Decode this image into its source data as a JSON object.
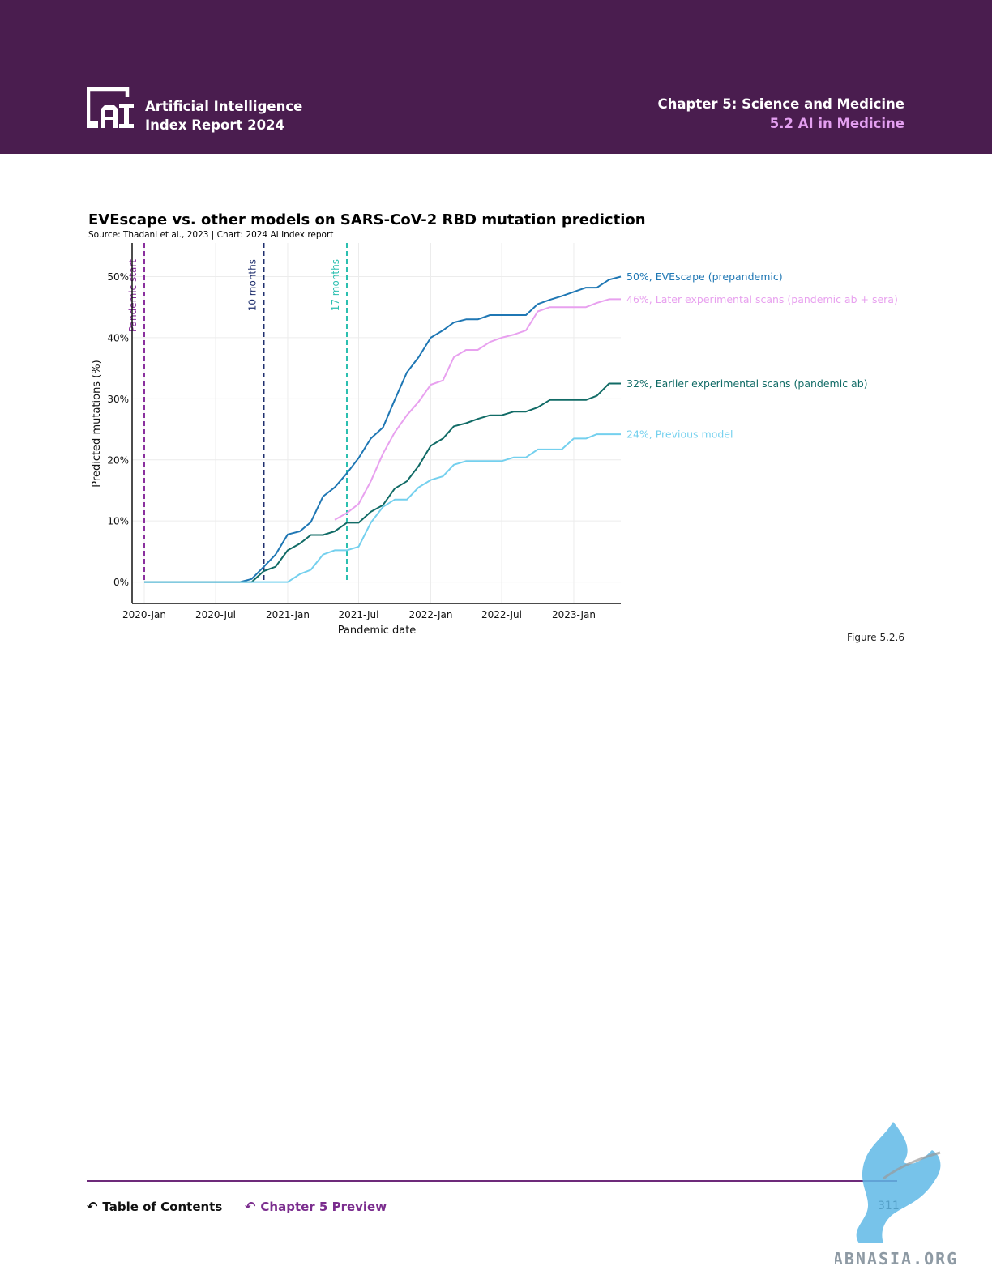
{
  "header": {
    "brand_line1": "Artificial Intelligence",
    "brand_line2": "Index Report 2024",
    "chapter": "Chapter 5: Science and Medicine",
    "section": "5.2 AI in Medicine",
    "colors": {
      "background": "#4a1d4f",
      "section": "#e39ff0"
    }
  },
  "figure": {
    "label": "Figure 5.2.6"
  },
  "footer": {
    "toc_label": "Table of Contents",
    "preview_label": "Chapter 5 Preview",
    "page_number": "311",
    "watermark": "ABNASIA.ORG"
  },
  "chart_data": {
    "type": "line",
    "title": "EVEscape vs. other models on SARS-CoV-2 RBD mutation prediction",
    "subtitle": "Source: Thadani et al., 2023 | Chart: 2024 AI Index report",
    "xlabel": "Pandemic date",
    "ylabel": "Predicted mutations (%)",
    "x_ticks": [
      "2020-Jan",
      "2020-Jul",
      "2021-Jan",
      "2021-Jul",
      "2022-Jan",
      "2022-Jul",
      "2023-Jan"
    ],
    "x_range": [
      "2019-12-01",
      "2023-05-01"
    ],
    "y_ticks": [
      "0%",
      "10%",
      "20%",
      "30%",
      "40%",
      "50%"
    ],
    "ylim": [
      -3.5,
      55.5
    ],
    "grid": true,
    "vlines": [
      {
        "label": "Pandemic start",
        "x": "2020-01-01",
        "color": "#8a2f9e"
      },
      {
        "label": "10 months",
        "x": "2020-11-01",
        "color": "#1f2f6e"
      },
      {
        "label": "17 months",
        "x": "2021-06-01",
        "color": "#2bbfb0"
      }
    ],
    "series": [
      {
        "name": "50%, EVEscape (prepandemic)",
        "color": "#1f77b4",
        "points": [
          [
            "2020-01-01",
            0
          ],
          [
            "2020-09-01",
            0
          ],
          [
            "2020-10-01",
            0.5
          ],
          [
            "2020-11-01",
            2.5
          ],
          [
            "2020-12-01",
            4.5
          ],
          [
            "2021-01-01",
            7.8
          ],
          [
            "2021-02-01",
            8.3
          ],
          [
            "2021-03-01",
            9.8
          ],
          [
            "2021-04-01",
            14
          ],
          [
            "2021-05-01",
            15.5
          ],
          [
            "2021-06-01",
            17.8
          ],
          [
            "2021-07-01",
            20.3
          ],
          [
            "2021-08-01",
            23.5
          ],
          [
            "2021-09-01",
            25.3
          ],
          [
            "2021-10-01",
            29.8
          ],
          [
            "2021-11-01",
            34.3
          ],
          [
            "2021-12-01",
            36.8
          ],
          [
            "2022-01-01",
            40
          ],
          [
            "2022-02-01",
            41.2
          ],
          [
            "2022-03-01",
            42.5
          ],
          [
            "2022-04-01",
            43
          ],
          [
            "2022-05-01",
            43
          ],
          [
            "2022-06-01",
            43.7
          ],
          [
            "2022-07-01",
            43.7
          ],
          [
            "2022-08-01",
            43.7
          ],
          [
            "2022-09-01",
            43.7
          ],
          [
            "2022-10-01",
            45.5
          ],
          [
            "2022-11-01",
            46.2
          ],
          [
            "2022-12-01",
            46.8
          ],
          [
            "2023-01-01",
            47.5
          ],
          [
            "2023-02-01",
            48.2
          ],
          [
            "2023-03-01",
            48.2
          ],
          [
            "2023-04-01",
            49.5
          ],
          [
            "2023-05-01",
            50
          ]
        ]
      },
      {
        "name": "46%, Later experimental scans (pandemic ab + sera)",
        "color": "#e8a1ef",
        "points": [
          [
            "2021-05-01",
            10.2
          ],
          [
            "2021-06-01",
            11.3
          ],
          [
            "2021-07-01",
            12.8
          ],
          [
            "2021-08-01",
            16.5
          ],
          [
            "2021-09-01",
            21
          ],
          [
            "2021-10-01",
            24.5
          ],
          [
            "2021-11-01",
            27.3
          ],
          [
            "2021-12-01",
            29.5
          ],
          [
            "2022-01-01",
            32.3
          ],
          [
            "2022-02-01",
            33
          ],
          [
            "2022-03-01",
            36.8
          ],
          [
            "2022-04-01",
            38
          ],
          [
            "2022-05-01",
            38
          ],
          [
            "2022-06-01",
            39.3
          ],
          [
            "2022-07-01",
            40
          ],
          [
            "2022-08-01",
            40.5
          ],
          [
            "2022-09-01",
            41.2
          ],
          [
            "2022-10-01",
            44.3
          ],
          [
            "2022-11-01",
            45
          ],
          [
            "2022-12-01",
            45
          ],
          [
            "2023-01-01",
            45
          ],
          [
            "2023-02-01",
            45
          ],
          [
            "2023-03-01",
            45.7
          ],
          [
            "2023-04-01",
            46.3
          ],
          [
            "2023-05-01",
            46.3
          ]
        ]
      },
      {
        "name": "32%, Earlier experimental scans (pandemic ab)",
        "color": "#116b66",
        "points": [
          [
            "2020-01-01",
            0
          ],
          [
            "2020-10-01",
            0
          ],
          [
            "2020-11-01",
            1.8
          ],
          [
            "2020-12-01",
            2.5
          ],
          [
            "2021-01-01",
            5.2
          ],
          [
            "2021-02-01",
            6.3
          ],
          [
            "2021-03-01",
            7.7
          ],
          [
            "2021-04-01",
            7.7
          ],
          [
            "2021-05-01",
            8.3
          ],
          [
            "2021-06-01",
            9.7
          ],
          [
            "2021-07-01",
            9.7
          ],
          [
            "2021-08-01",
            11.5
          ],
          [
            "2021-09-01",
            12.6
          ],
          [
            "2021-10-01",
            15.3
          ],
          [
            "2021-11-01",
            16.5
          ],
          [
            "2021-12-01",
            19
          ],
          [
            "2022-01-01",
            22.3
          ],
          [
            "2022-02-01",
            23.5
          ],
          [
            "2022-03-01",
            25.5
          ],
          [
            "2022-04-01",
            26
          ],
          [
            "2022-05-01",
            26.7
          ],
          [
            "2022-06-01",
            27.3
          ],
          [
            "2022-07-01",
            27.3
          ],
          [
            "2022-08-01",
            27.9
          ],
          [
            "2022-09-01",
            27.9
          ],
          [
            "2022-10-01",
            28.6
          ],
          [
            "2022-11-01",
            29.8
          ],
          [
            "2022-12-01",
            29.8
          ],
          [
            "2023-01-01",
            29.8
          ],
          [
            "2023-02-01",
            29.8
          ],
          [
            "2023-03-01",
            30.5
          ],
          [
            "2023-04-01",
            32.5
          ],
          [
            "2023-05-01",
            32.5
          ]
        ]
      },
      {
        "name": "24%, Previous model",
        "color": "#74d0ee",
        "points": [
          [
            "2020-01-01",
            0
          ],
          [
            "2021-01-01",
            0
          ],
          [
            "2021-02-01",
            1.3
          ],
          [
            "2021-03-01",
            2
          ],
          [
            "2021-04-01",
            4.5
          ],
          [
            "2021-05-01",
            5.2
          ],
          [
            "2021-06-01",
            5.2
          ],
          [
            "2021-07-01",
            5.8
          ],
          [
            "2021-08-01",
            9.7
          ],
          [
            "2021-09-01",
            12.3
          ],
          [
            "2021-10-01",
            13.5
          ],
          [
            "2021-11-01",
            13.5
          ],
          [
            "2021-12-01",
            15.5
          ],
          [
            "2022-01-01",
            16.7
          ],
          [
            "2022-02-01",
            17.3
          ],
          [
            "2022-03-01",
            19.2
          ],
          [
            "2022-04-01",
            19.8
          ],
          [
            "2022-05-01",
            19.8
          ],
          [
            "2022-06-01",
            19.8
          ],
          [
            "2022-07-01",
            19.8
          ],
          [
            "2022-08-01",
            20.4
          ],
          [
            "2022-09-01",
            20.4
          ],
          [
            "2022-10-01",
            21.7
          ],
          [
            "2022-11-01",
            21.7
          ],
          [
            "2022-12-01",
            21.7
          ],
          [
            "2023-01-01",
            23.5
          ],
          [
            "2023-02-01",
            23.5
          ],
          [
            "2023-03-01",
            24.2
          ],
          [
            "2023-04-01",
            24.2
          ],
          [
            "2023-05-01",
            24.2
          ]
        ]
      }
    ]
  }
}
